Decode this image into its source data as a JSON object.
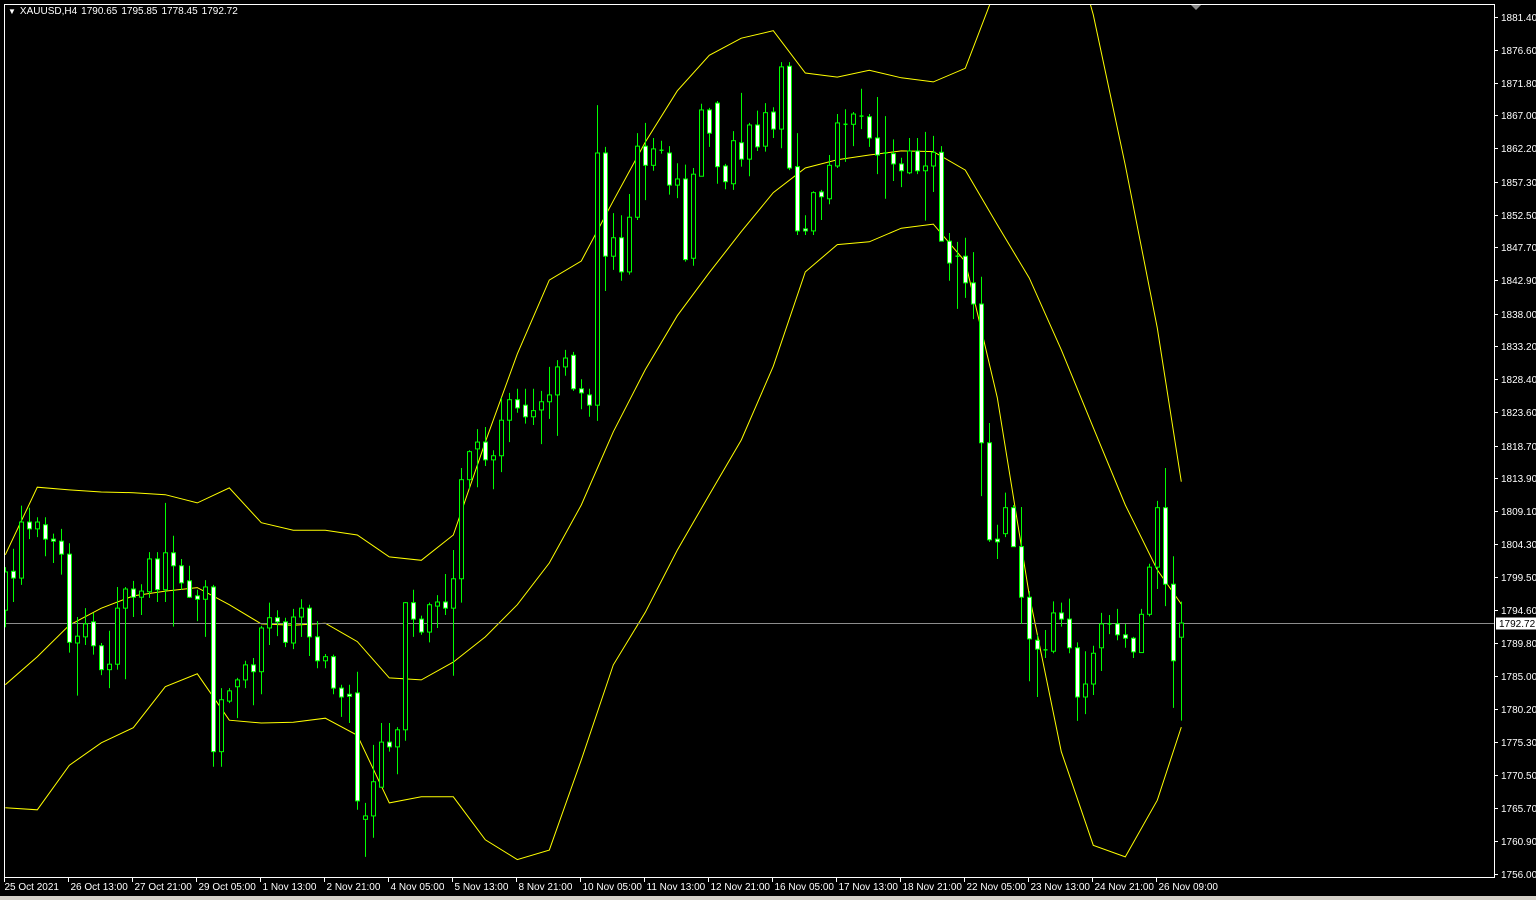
{
  "header": {
    "menu_icon": "triangle-down-icon",
    "symbol_timeframe": "XAUUSD,H4",
    "open": "1790.65",
    "high": "1795.85",
    "low": "1778.45",
    "close": "1792.72"
  },
  "colors": {
    "background": "#000000",
    "candle_outline": "#00ff00",
    "bear_fill": "#ffffff",
    "bull_fill": "#000000",
    "bands": "#ffff00",
    "price_line": "#8c8c8c",
    "axis_text": "#ffffff"
  },
  "chart_data": {
    "type": "candlestick",
    "symbol": "XAUUSD",
    "timeframe": "H4",
    "grid": false,
    "ylim": [
      1756.0,
      1881.4
    ],
    "y_ticks": [
      "1881.40",
      "1876.60",
      "1871.80",
      "1867.00",
      "1862.20",
      "1857.30",
      "1852.50",
      "1847.70",
      "1842.90",
      "1838.00",
      "1833.20",
      "1828.40",
      "1823.60",
      "1818.70",
      "1813.90",
      "1809.10",
      "1804.30",
      "1799.50",
      "1794.60",
      "1789.80",
      "1785.00",
      "1780.20",
      "1775.30",
      "1770.50",
      "1765.70",
      "1760.90",
      "1756.00"
    ],
    "x_ticks": [
      "25 Oct 2021",
      "26 Oct 13:00",
      "27 Oct 21:00",
      "29 Oct 05:00",
      "1 Nov 13:00",
      "2 Nov 21:00",
      "4 Nov 05:00",
      "5 Nov 13:00",
      "8 Nov 21:00",
      "10 Nov 05:00",
      "11 Nov 13:00",
      "12 Nov 21:00",
      "16 Nov 05:00",
      "17 Nov 13:00",
      "18 Nov 21:00",
      "22 Nov 05:00",
      "23 Nov 13:00",
      "24 Nov 21:00",
      "26 Nov 09:00"
    ],
    "current_price": 1792.72,
    "current_price_label": "1792.72",
    "candles_ohlc": [
      [
        1794.6,
        1800.9,
        1792.1,
        1800.2
      ],
      [
        1800.3,
        1803.6,
        1795.8,
        1799.3
      ],
      [
        1799.3,
        1809.9,
        1798.3,
        1807.5
      ],
      [
        1807.5,
        1809.6,
        1805.0,
        1806.5
      ],
      [
        1806.5,
        1808.2,
        1805.3,
        1807.5
      ],
      [
        1807.1,
        1808.2,
        1802.5,
        1805.0
      ],
      [
        1805.0,
        1805.8,
        1801.5,
        1804.7
      ],
      [
        1804.7,
        1806.5,
        1799.8,
        1802.8
      ],
      [
        1802.8,
        1804.4,
        1788.4,
        1789.9
      ],
      [
        1789.8,
        1793.6,
        1782.1,
        1790.8
      ],
      [
        1790.7,
        1794.9,
        1789.5,
        1792.6
      ],
      [
        1792.9,
        1794.2,
        1788.1,
        1789.4
      ],
      [
        1789.4,
        1789.8,
        1785.1,
        1785.9
      ],
      [
        1785.9,
        1791.6,
        1783.2,
        1786.7
      ],
      [
        1786.7,
        1798.0,
        1785.9,
        1794.9
      ],
      [
        1794.9,
        1798.0,
        1784.5,
        1797.7
      ],
      [
        1797.7,
        1798.9,
        1793.6,
        1796.5
      ],
      [
        1796.5,
        1798.4,
        1793.9,
        1797.4
      ],
      [
        1797.3,
        1803.1,
        1796.4,
        1802.1
      ],
      [
        1802.1,
        1803.1,
        1795.8,
        1797.6
      ],
      [
        1797.6,
        1810.3,
        1795.8,
        1803.0
      ],
      [
        1803.0,
        1805.5,
        1792.2,
        1801.1
      ],
      [
        1801.1,
        1802.1,
        1797.6,
        1798.6
      ],
      [
        1798.9,
        1801.1,
        1796.4,
        1796.5
      ],
      [
        1796.7,
        1797.6,
        1793.0,
        1796.2
      ],
      [
        1796.2,
        1799.0,
        1790.7,
        1798.0
      ],
      [
        1798.0,
        1798.3,
        1771.7,
        1773.9
      ],
      [
        1773.9,
        1783.2,
        1771.7,
        1781.5
      ],
      [
        1781.3,
        1783.2,
        1781.0,
        1782.8
      ],
      [
        1783.4,
        1784.7,
        1778.8,
        1784.4
      ],
      [
        1784.4,
        1787.2,
        1783.2,
        1786.6
      ],
      [
        1786.6,
        1787.6,
        1780.7,
        1785.6
      ],
      [
        1785.6,
        1792.3,
        1782.3,
        1792.0
      ],
      [
        1792.0,
        1795.7,
        1789.5,
        1793.5
      ],
      [
        1793.5,
        1794.6,
        1790.8,
        1792.9
      ],
      [
        1792.9,
        1793.5,
        1789.2,
        1789.9
      ],
      [
        1789.8,
        1794.8,
        1788.9,
        1793.6
      ],
      [
        1793.6,
        1796.2,
        1790.7,
        1794.9
      ],
      [
        1794.9,
        1795.4,
        1787.9,
        1790.7
      ],
      [
        1790.7,
        1793.0,
        1786.1,
        1787.2
      ],
      [
        1787.2,
        1788.2,
        1786.1,
        1787.8
      ],
      [
        1787.8,
        1788.1,
        1782.3,
        1783.2
      ],
      [
        1783.2,
        1783.7,
        1779.0,
        1781.9
      ],
      [
        1782.3,
        1783.7,
        1778.1,
        1782.0
      ],
      [
        1782.5,
        1785.6,
        1765.4,
        1766.7
      ],
      [
        1764.0,
        1766.4,
        1758.5,
        1764.5
      ],
      [
        1764.5,
        1774.9,
        1761.3,
        1769.5
      ],
      [
        1768.7,
        1778.1,
        1768.7,
        1775.3
      ],
      [
        1775.3,
        1778.1,
        1773.9,
        1774.6
      ],
      [
        1774.6,
        1777.5,
        1770.6,
        1777.1
      ],
      [
        1777.1,
        1795.8,
        1775.5,
        1795.7
      ],
      [
        1795.7,
        1797.6,
        1790.7,
        1793.3
      ],
      [
        1793.3,
        1793.8,
        1791.0,
        1791.4
      ],
      [
        1791.4,
        1795.7,
        1789.9,
        1795.4
      ],
      [
        1795.2,
        1796.8,
        1792.0,
        1795.8
      ],
      [
        1795.8,
        1799.9,
        1793.9,
        1794.9
      ],
      [
        1794.9,
        1803.4,
        1785.0,
        1799.2
      ],
      [
        1799.2,
        1815.4,
        1795.7,
        1813.7
      ],
      [
        1813.7,
        1818.0,
        1812.3,
        1817.8
      ],
      [
        1818.2,
        1821.1,
        1812.6,
        1819.2
      ],
      [
        1819.2,
        1821.4,
        1815.7,
        1816.6
      ],
      [
        1816.6,
        1818.0,
        1812.3,
        1817.2
      ],
      [
        1817.2,
        1825.7,
        1814.8,
        1822.4
      ],
      [
        1822.4,
        1826.4,
        1819.2,
        1825.4
      ],
      [
        1825.4,
        1827.0,
        1823.5,
        1824.2
      ],
      [
        1824.6,
        1827.0,
        1821.9,
        1822.9
      ],
      [
        1822.9,
        1827.0,
        1821.7,
        1823.8
      ],
      [
        1823.9,
        1826.7,
        1818.9,
        1825.1
      ],
      [
        1825.1,
        1830.2,
        1822.6,
        1826.1
      ],
      [
        1826.1,
        1831.2,
        1820.1,
        1830.2
      ],
      [
        1830.2,
        1832.7,
        1828.9,
        1831.5
      ],
      [
        1831.9,
        1832.4,
        1826.7,
        1827.0
      ],
      [
        1827.0,
        1828.4,
        1824.0,
        1826.4
      ],
      [
        1826.1,
        1827.0,
        1822.9,
        1824.6
      ],
      [
        1824.6,
        1868.5,
        1822.3,
        1861.5
      ],
      [
        1861.5,
        1862.4,
        1841.3,
        1846.4
      ],
      [
        1846.4,
        1852.7,
        1844.4,
        1849.1
      ],
      [
        1849.1,
        1852.4,
        1842.8,
        1844.1
      ],
      [
        1844.1,
        1855.5,
        1843.7,
        1852.1
      ],
      [
        1852.1,
        1864.4,
        1851.7,
        1862.5
      ],
      [
        1862.5,
        1865.9,
        1854.6,
        1859.7
      ],
      [
        1859.7,
        1863.7,
        1858.9,
        1862.1
      ],
      [
        1861.9,
        1863.3,
        1861.4,
        1861.9
      ],
      [
        1861.5,
        1862.5,
        1855.4,
        1856.8
      ],
      [
        1856.8,
        1860.0,
        1854.9,
        1857.7
      ],
      [
        1857.7,
        1859.8,
        1845.6,
        1845.9
      ],
      [
        1846.1,
        1859.3,
        1845.0,
        1858.4
      ],
      [
        1858.1,
        1868.7,
        1858.1,
        1867.8
      ],
      [
        1867.8,
        1868.1,
        1862.4,
        1864.4
      ],
      [
        1868.8,
        1869.1,
        1857.0,
        1859.5
      ],
      [
        1859.6,
        1859.9,
        1856.2,
        1857.3
      ],
      [
        1857.0,
        1864.7,
        1856.1,
        1863.3
      ],
      [
        1863.0,
        1870.3,
        1859.5,
        1860.6
      ],
      [
        1860.6,
        1865.9,
        1858.1,
        1865.6
      ],
      [
        1865.6,
        1867.7,
        1861.8,
        1862.4
      ],
      [
        1862.5,
        1868.8,
        1861.7,
        1867.4
      ],
      [
        1867.5,
        1868.2,
        1863.7,
        1865.0
      ],
      [
        1865.0,
        1874.8,
        1862.2,
        1874.1
      ],
      [
        1874.2,
        1874.8,
        1859.0,
        1859.3
      ],
      [
        1859.5,
        1864.4,
        1849.5,
        1850.1
      ],
      [
        1850.4,
        1852.4,
        1849.5,
        1850.1
      ],
      [
        1850.1,
        1855.9,
        1849.5,
        1855.7
      ],
      [
        1855.8,
        1856.1,
        1851.7,
        1855.1
      ],
      [
        1854.8,
        1861.2,
        1854.0,
        1859.7
      ],
      [
        1859.6,
        1867.2,
        1859.3,
        1865.9
      ],
      [
        1865.7,
        1867.9,
        1860.2,
        1865.7
      ],
      [
        1865.7,
        1867.5,
        1862.5,
        1867.2
      ],
      [
        1866.9,
        1870.9,
        1865.0,
        1866.9
      ],
      [
        1866.8,
        1867.2,
        1862.4,
        1863.7
      ],
      [
        1863.7,
        1869.7,
        1858.4,
        1861.2
      ],
      [
        1861.5,
        1866.9,
        1854.8,
        1861.5
      ],
      [
        1861.4,
        1863.5,
        1857.4,
        1859.9
      ],
      [
        1859.9,
        1860.8,
        1856.5,
        1858.9
      ],
      [
        1858.6,
        1863.7,
        1858.4,
        1861.8
      ],
      [
        1861.8,
        1863.7,
        1858.4,
        1858.9
      ],
      [
        1858.9,
        1864.6,
        1851.6,
        1859.6
      ],
      [
        1859.6,
        1864.0,
        1855.8,
        1861.6
      ],
      [
        1861.6,
        1862.5,
        1848.6,
        1848.6
      ],
      [
        1848.6,
        1849.8,
        1842.8,
        1845.4
      ],
      [
        1846.4,
        1848.5,
        1838.7,
        1846.4
      ],
      [
        1846.4,
        1849.1,
        1840.3,
        1842.5
      ],
      [
        1842.5,
        1847.0,
        1837.2,
        1839.4
      ],
      [
        1839.4,
        1843.4,
        1811.3,
        1819.1
      ],
      [
        1819.1,
        1822.0,
        1804.6,
        1804.9
      ],
      [
        1805.0,
        1807.1,
        1802.1,
        1804.6
      ],
      [
        1805.8,
        1811.8,
        1805.3,
        1809.6
      ],
      [
        1809.6,
        1810.0,
        1803.9,
        1803.9
      ],
      [
        1803.9,
        1809.7,
        1792.6,
        1796.5
      ],
      [
        1796.5,
        1797.4,
        1784.2,
        1790.4
      ],
      [
        1790.2,
        1791.0,
        1781.9,
        1788.9
      ],
      [
        1788.8,
        1791.7,
        1787.6,
        1788.8
      ],
      [
        1788.6,
        1795.9,
        1788.3,
        1794.2
      ],
      [
        1794.2,
        1795.7,
        1792.2,
        1793.3
      ],
      [
        1793.3,
        1796.3,
        1788.3,
        1789.1
      ],
      [
        1789.1,
        1789.9,
        1778.4,
        1781.9
      ],
      [
        1781.9,
        1788.6,
        1779.4,
        1783.8
      ],
      [
        1783.8,
        1789.4,
        1782.2,
        1788.3
      ],
      [
        1789.1,
        1794.2,
        1785.7,
        1792.6
      ],
      [
        1792.6,
        1793.9,
        1791.1,
        1792.6
      ],
      [
        1792.6,
        1794.8,
        1790.2,
        1791.0
      ],
      [
        1791.0,
        1792.6,
        1789.1,
        1790.5
      ],
      [
        1790.5,
        1790.7,
        1787.6,
        1788.5
      ],
      [
        1788.4,
        1794.8,
        1788.4,
        1794.0
      ],
      [
        1794.0,
        1801.4,
        1793.7,
        1800.9
      ],
      [
        1800.9,
        1810.6,
        1797.7,
        1809.6
      ],
      [
        1809.6,
        1815.4,
        1795.2,
        1798.4
      ],
      [
        1798.4,
        1802.5,
        1780.3,
        1787.2
      ],
      [
        1790.65,
        1795.85,
        1778.45,
        1792.72
      ]
    ],
    "bands": {
      "upper": [
        1802.7,
        1812.6,
        1812.2,
        1811.9,
        1811.8,
        1811.5,
        1810.3,
        1812.5,
        1807.4,
        1806.3,
        1806.3,
        1805.6,
        1802.4,
        1801.9,
        1805.6,
        1819.2,
        1832.1,
        1842.9,
        1845.7,
        1854.5,
        1863.1,
        1870.6,
        1875.8,
        1878.3,
        1879.4,
        1873.2,
        1872.6,
        1873.6,
        1872.5,
        1871.9,
        1873.9,
        1886.1,
        1897.1,
        1898.5,
        1881.7,
        1859.7,
        1835.9,
        1813.4
      ],
      "middle": [
        1783.7,
        1787.8,
        1792.4,
        1794.9,
        1796.7,
        1797.4,
        1797.9,
        1795.4,
        1792.6,
        1792.4,
        1792.7,
        1790.0,
        1784.7,
        1784.4,
        1787.0,
        1790.7,
        1795.4,
        1801.5,
        1810.0,
        1820.7,
        1829.8,
        1837.7,
        1844.0,
        1850.0,
        1855.7,
        1859.3,
        1860.5,
        1861.2,
        1861.8,
        1861.7,
        1859.0,
        1851.0,
        1843.2,
        1832.7,
        1821.3,
        1810.0,
        1800.5,
        1795.5
      ],
      "lower": [
        1765.7,
        1765.4,
        1771.9,
        1775.2,
        1777.4,
        1783.4,
        1785.3,
        1778.5,
        1778.1,
        1778.2,
        1778.8,
        1776.3,
        1766.4,
        1767.3,
        1767.3,
        1761.0,
        1758.1,
        1759.5,
        1772.7,
        1786.6,
        1794.3,
        1803.4,
        1811.5,
        1819.5,
        1830.3,
        1844.1,
        1848.1,
        1848.5,
        1850.5,
        1851.1,
        1845.6,
        1825.7,
        1796.8,
        1773.9,
        1760.2,
        1758.5,
        1766.8,
        1777.5
      ]
    }
  }
}
